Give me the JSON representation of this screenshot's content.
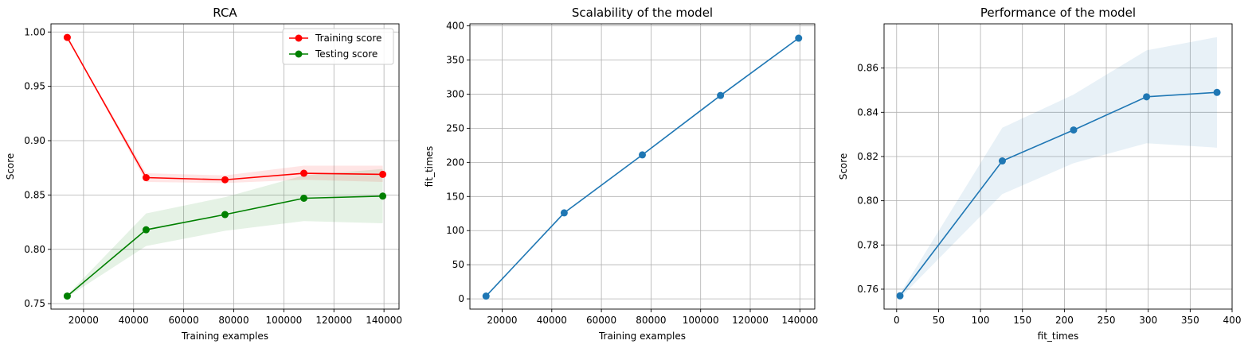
{
  "chart_data": [
    {
      "type": "line",
      "title": "RCA",
      "xlabel": "Training examples",
      "ylabel": "Score",
      "xlim": [
        7000,
        146000
      ],
      "ylim": [
        0.745,
        1.0075
      ],
      "xticks": [
        20000,
        40000,
        60000,
        80000,
        100000,
        120000,
        140000
      ],
      "yticks": [
        0.75,
        0.8,
        0.85,
        0.9,
        0.95,
        1.0
      ],
      "ytick_decimals": 2,
      "grid": true,
      "legend": "top-right",
      "x": [
        13500,
        45000,
        76500,
        108000,
        139500
      ],
      "series": [
        {
          "name": "Training score",
          "color": "#ff0000",
          "values": [
            0.995,
            0.866,
            0.864,
            0.87,
            0.869
          ],
          "band_low": [
            0.995,
            0.862,
            0.861,
            0.864,
            0.862
          ],
          "band_high": [
            0.995,
            0.87,
            0.868,
            0.877,
            0.877
          ]
        },
        {
          "name": "Testing score",
          "color": "#008000",
          "values": [
            0.757,
            0.818,
            0.832,
            0.847,
            0.849
          ],
          "band_low": [
            0.756,
            0.803,
            0.817,
            0.826,
            0.824
          ],
          "band_high": [
            0.758,
            0.833,
            0.848,
            0.868,
            0.874
          ]
        }
      ]
    },
    {
      "type": "line",
      "title": "Scalability of the model",
      "xlabel": "Training examples",
      "ylabel": "fit_times",
      "xlim": [
        7000,
        146000
      ],
      "ylim": [
        -15,
        403
      ],
      "xticks": [
        20000,
        40000,
        60000,
        80000,
        100000,
        120000,
        140000
      ],
      "yticks": [
        0,
        50,
        100,
        150,
        200,
        250,
        300,
        350,
        400
      ],
      "ytick_decimals": 0,
      "grid": true,
      "x": [
        13500,
        45000,
        76500,
        108000,
        139500
      ],
      "series": [
        {
          "color": "#1f77b4",
          "values": [
            4,
            126,
            211,
            298,
            382
          ]
        }
      ]
    },
    {
      "type": "line",
      "title": "Performance of the model",
      "xlabel": "fit_times",
      "ylabel": "Score",
      "xlim": [
        -15,
        400
      ],
      "ylim": [
        0.751,
        0.88
      ],
      "xticks": [
        0,
        50,
        100,
        150,
        200,
        250,
        300,
        350,
        400
      ],
      "yticks": [
        0.76,
        0.78,
        0.8,
        0.82,
        0.84,
        0.86
      ],
      "ytick_decimals": 2,
      "grid": true,
      "x": [
        4,
        126,
        211,
        298,
        382
      ],
      "series": [
        {
          "color": "#1f77b4",
          "values": [
            0.757,
            0.818,
            0.832,
            0.847,
            0.849
          ],
          "band_low": [
            0.756,
            0.803,
            0.817,
            0.826,
            0.824
          ],
          "band_high": [
            0.758,
            0.833,
            0.848,
            0.868,
            0.874
          ],
          "band_color": "#1f77b4"
        }
      ]
    }
  ]
}
